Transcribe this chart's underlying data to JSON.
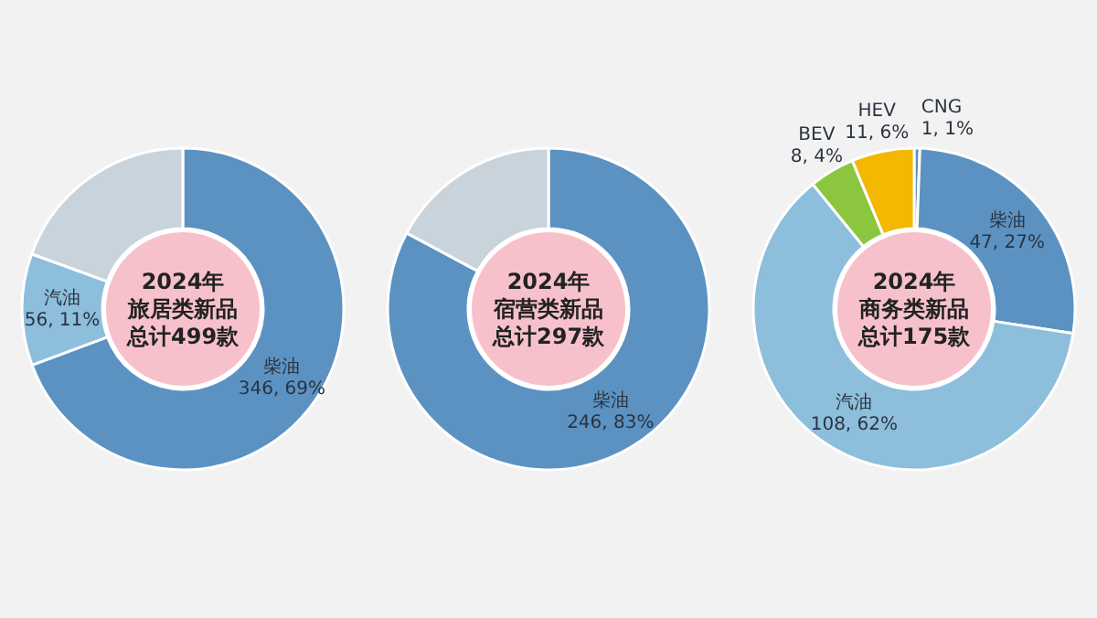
{
  "chart_data": [
    {
      "type": "donut",
      "title": "2024年",
      "subtitle": "旅居类新品",
      "annotations": [
        "总计499款"
      ],
      "categories": [
        "柴油",
        "汽油",
        null
      ],
      "values": [
        346,
        56,
        97
      ],
      "colors": [
        "#5b92c2",
        "#8dbedc",
        "#c9d3dc"
      ],
      "value_labels": [
        "346, 69%",
        "56, 11%",
        null
      ]
    },
    {
      "type": "donut",
      "title": "2024年",
      "subtitle": "宿营类新品",
      "annotations": [
        "总计297款"
      ],
      "categories": [
        "柴油",
        null
      ],
      "values": [
        246,
        51
      ],
      "colors": [
        "#5b92c2",
        "#c9d3dc"
      ],
      "value_labels": [
        "246, 83%",
        null
      ]
    },
    {
      "type": "donut",
      "title": "2024年",
      "subtitle": "商务类新品",
      "annotations": [
        "总计175款"
      ],
      "categories": [
        "CNG",
        "柴油",
        "汽油",
        "BEV",
        "HEV"
      ],
      "values": [
        1,
        47,
        108,
        8,
        11
      ],
      "colors": [
        "#5b92c2",
        "#5b92c2",
        "#8dbedc",
        "#8cc63f",
        "#f5b800"
      ],
      "value_labels": [
        "1, 1%",
        "47, 27%",
        "108, 62%",
        "8, 4%",
        "11, 6%"
      ]
    }
  ]
}
